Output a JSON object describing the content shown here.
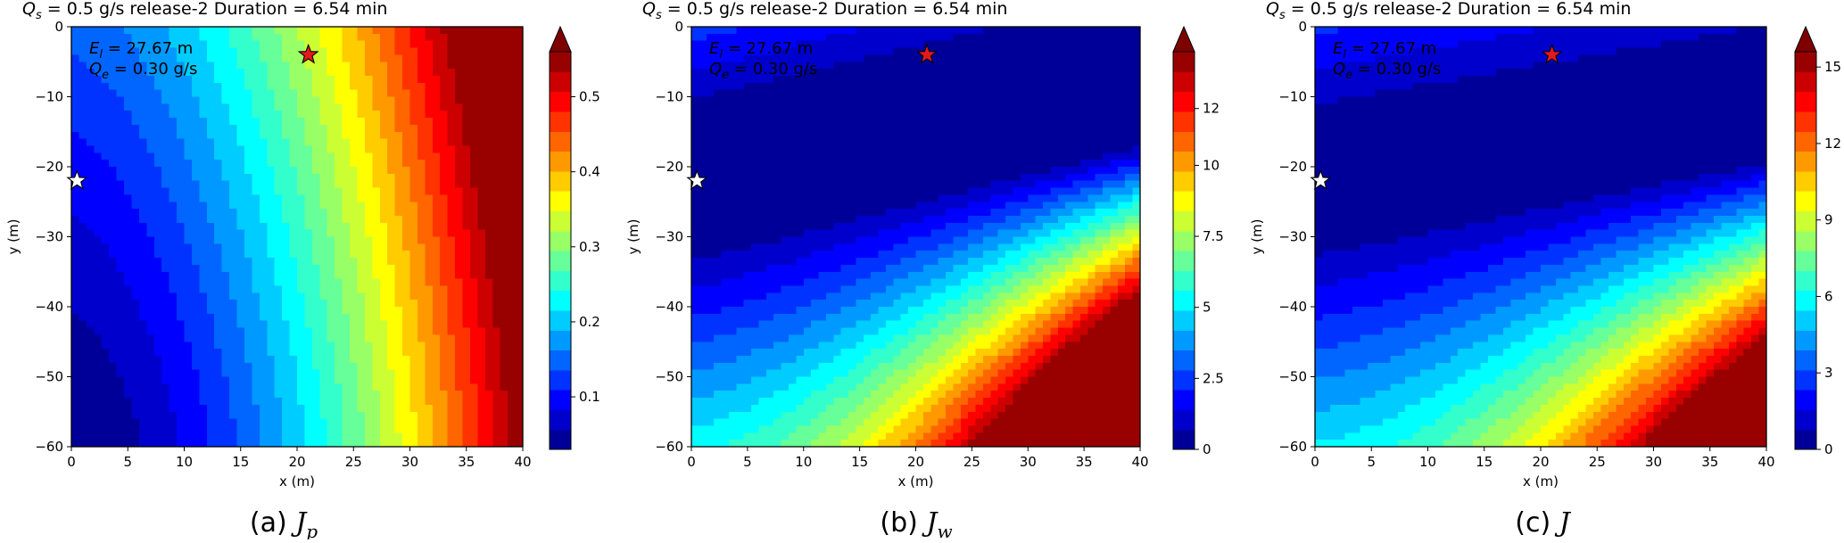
{
  "chart_data": [
    {
      "type": "contour",
      "header": {
        "qs": "0.5 g/s",
        "release": "release-2",
        "duration": "6.54 min"
      },
      "annotation": {
        "el": "27.67 m",
        "qe": "0.30 g/s"
      },
      "xlabel": "x (m)",
      "ylabel": "y (m)",
      "xlim": [
        0,
        40
      ],
      "ylim": [
        -60,
        0
      ],
      "xticks": [
        0,
        5,
        10,
        15,
        20,
        25,
        30,
        35,
        40
      ],
      "yticks": [
        0,
        -10,
        -20,
        -30,
        -40,
        -50,
        -60
      ],
      "markers": [
        {
          "name": "source-star",
          "x": 21,
          "y": -4,
          "color": "#e31a1c"
        },
        {
          "name": "sensor-star",
          "x": 0.5,
          "y": -22,
          "color": "#ffffff"
        }
      ],
      "colorbar": {
        "min": 0.03,
        "max": 0.56,
        "ticks": [
          0.1,
          0.2,
          0.3,
          0.4,
          0.5
        ],
        "tick_labels": [
          "0.1",
          "0.2",
          "0.3",
          "0.4",
          "0.5"
        ],
        "levels": 20,
        "extend": "max"
      },
      "caption": {
        "prefix": "(a) ",
        "symbol": "J",
        "subscript": "p"
      }
    },
    {
      "type": "contour",
      "header": {
        "qs": "0.5 g/s",
        "release": "release-2",
        "duration": "6.54 min"
      },
      "annotation": {
        "el": "27.67 m",
        "qe": "0.30 g/s"
      },
      "xlabel": "x (m)",
      "ylabel": "y (m)",
      "xlim": [
        0,
        40
      ],
      "ylim": [
        -60,
        0
      ],
      "xticks": [
        0,
        5,
        10,
        15,
        20,
        25,
        30,
        35,
        40
      ],
      "yticks": [
        0,
        -10,
        -20,
        -30,
        -40,
        -50,
        -60
      ],
      "markers": [
        {
          "name": "source-star",
          "x": 21,
          "y": -4,
          "color": "#e31a1c"
        },
        {
          "name": "sensor-star",
          "x": 0.5,
          "y": -22,
          "color": "#ffffff"
        }
      ],
      "colorbar": {
        "min": 0,
        "max": 14,
        "ticks": [
          0,
          2.5,
          5,
          7.5,
          10,
          12
        ],
        "tick_labels": [
          "0",
          "2.5",
          "5",
          "7.5",
          "10",
          "12"
        ],
        "levels": 20,
        "extend": "max"
      },
      "caption": {
        "prefix": "(b) ",
        "symbol": "J",
        "subscript": "w"
      }
    },
    {
      "type": "contour",
      "header": {
        "qs": "0.5 g/s",
        "release": "release-2",
        "duration": "6.54 min"
      },
      "annotation": {
        "el": "27.67 m",
        "qe": "0.30 g/s"
      },
      "xlabel": "x (m)",
      "ylabel": "y (m)",
      "xlim": [
        0,
        40
      ],
      "ylim": [
        -60,
        0
      ],
      "xticks": [
        0,
        5,
        10,
        15,
        20,
        25,
        30,
        35,
        40
      ],
      "yticks": [
        0,
        -10,
        -20,
        -30,
        -40,
        -50,
        -60
      ],
      "markers": [
        {
          "name": "source-star",
          "x": 21,
          "y": -4,
          "color": "#e31a1c"
        },
        {
          "name": "sensor-star",
          "x": 0.5,
          "y": -22,
          "color": "#ffffff"
        }
      ],
      "colorbar": {
        "min": 0,
        "max": 15.6,
        "ticks": [
          0,
          3,
          6,
          9,
          12,
          15
        ],
        "tick_labels": [
          "0",
          "3",
          "6",
          "9",
          "12",
          "15"
        ],
        "levels": 20,
        "extend": "max"
      },
      "caption": {
        "prefix": "(c) ",
        "symbol": "J",
        "subscript": ""
      }
    }
  ]
}
